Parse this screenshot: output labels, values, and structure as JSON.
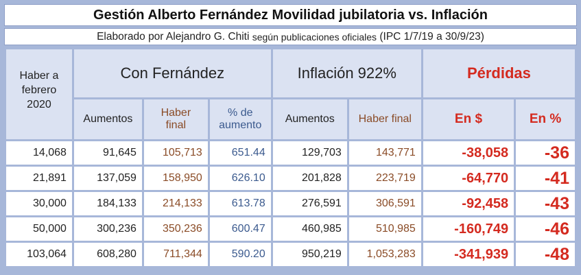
{
  "title": "Gestión Alberto Fernández Movilidad jubilatoria vs. Inflación",
  "subtitle": {
    "part1": "Elaborado por Alejandro G. Chiti",
    "part2": "según publicaciones oficiales",
    "part3": "(IPC 1/7/19 a 30/9/23)"
  },
  "headers": {
    "haber": "Haber a febrero 2020",
    "con_fernandez": "Con Fernández",
    "inflacion": "Inflación 922%",
    "perdidas": "Pérdidas",
    "aumentos": "Aumentos",
    "haber_final": "Haber final",
    "pct_aumento": "% de aumento",
    "aumentos2": "Aumentos",
    "haber_final2": "Haber final",
    "en_pesos": "En $",
    "en_pct": "En %"
  },
  "colors": {
    "frame": "#a7b7d9",
    "header_bg": "#dbe2f2",
    "loss_red": "#d42a1f",
    "haber_brown": "#8a4b26",
    "pct_blue": "#3b5a8e"
  },
  "rows": [
    {
      "haber": "14,068",
      "aum": "91,645",
      "final": "105,713",
      "pct": "651.44",
      "aum_inf": "129,703",
      "final_inf": "143,771",
      "loss": "-38,058",
      "loss_pct": "-36"
    },
    {
      "haber": "21,891",
      "aum": "137,059",
      "final": "158,950",
      "pct": "626.10",
      "aum_inf": "201,828",
      "final_inf": "223,719",
      "loss": "-64,770",
      "loss_pct": "-41"
    },
    {
      "haber": "30,000",
      "aum": "184,133",
      "final": "214,133",
      "pct": "613.78",
      "aum_inf": "276,591",
      "final_inf": "306,591",
      "loss": "-92,458",
      "loss_pct": "-43"
    },
    {
      "haber": "50,000",
      "aum": "300,236",
      "final": "350,236",
      "pct": "600.47",
      "aum_inf": "460,985",
      "final_inf": "510,985",
      "loss": "-160,749",
      "loss_pct": "-46"
    },
    {
      "haber": "103,064",
      "aum": "608,280",
      "final": "711,344",
      "pct": "590.20",
      "aum_inf": "950,219",
      "final_inf": "1,053,283",
      "loss": "-341,939",
      "loss_pct": "-48"
    }
  ]
}
